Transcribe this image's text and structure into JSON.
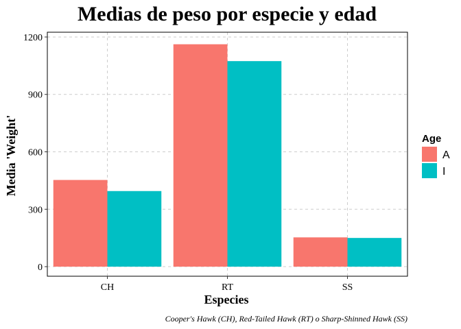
{
  "chart_data": {
    "type": "bar",
    "title": "Medias de peso por especie y edad",
    "xlabel": "Especies",
    "ylabel": "Media 'Weight'",
    "caption": "Cooper's Hawk (CH), Red-Tailed Hawk (RT) o Sharp-Shinned Hawk (SS)",
    "categories": [
      "CH",
      "RT",
      "SS"
    ],
    "series": [
      {
        "name": "A",
        "values": [
          453,
          1162,
          153
        ]
      },
      {
        "name": "I",
        "values": [
          395,
          1074,
          150
        ]
      }
    ],
    "ylim": [
      -50,
      1225
    ],
    "yticks": [
      0,
      300,
      600,
      900,
      1200
    ],
    "grid": true,
    "legend": {
      "title": "Age",
      "position": "right"
    },
    "colors": {
      "A": "#F8766D",
      "I": "#00BFC4"
    }
  }
}
